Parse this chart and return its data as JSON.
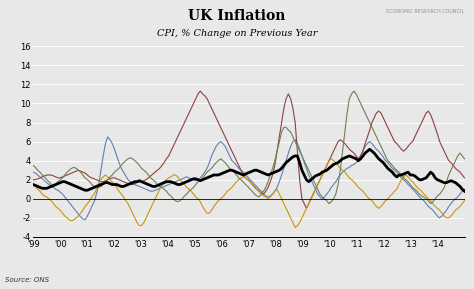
{
  "title": "UK Inflation",
  "subtitle": "CPI, % Change on Previous Year",
  "source": "Source: ONS",
  "watermark": "ECONOMIC RESEARCH COUNCIL",
  "ylim": [
    -4,
    16
  ],
  "yticks": [
    -4,
    -2,
    0,
    2,
    4,
    6,
    8,
    10,
    12,
    14,
    16
  ],
  "background_color": "#e8e8e8",
  "series_colors": {
    "Food & Beverages": "#6080b0",
    "Housing & Fuels": "#904040",
    "Transport": "#c8960c",
    "Recreation & Culture": "#708050",
    "CPI": "#000000"
  },
  "series_widths": {
    "Food & Beverages": 0.8,
    "Housing & Fuels": 0.8,
    "Transport": 0.8,
    "Recreation & Culture": 0.8,
    "CPI": 2.0
  },
  "xtick_labels": [
    "'99",
    "'00",
    "'01",
    "'02",
    "'03",
    "'04",
    "'05",
    "'06",
    "'07",
    "'08",
    "'09",
    "'10",
    "'11",
    "'12",
    "'13",
    "'14"
  ],
  "grid_color": "#ffffff",
  "grid_linewidth": 0.7
}
